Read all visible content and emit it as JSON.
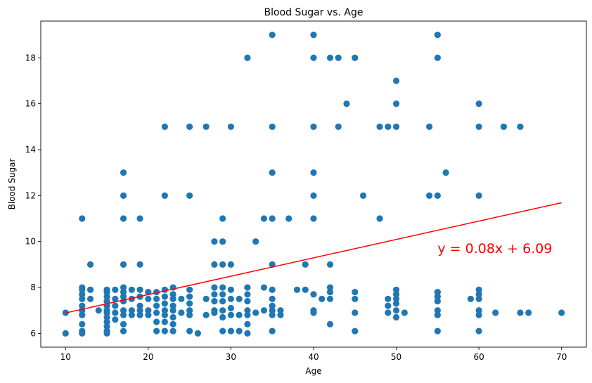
{
  "chart_data": {
    "type": "scatter",
    "title": "Blood Sugar vs. Age",
    "xlabel": "Age",
    "ylabel": "Blood Sugar",
    "xlim": [
      7,
      73
    ],
    "ylim": [
      5.4,
      19.6
    ],
    "xticks": [
      10,
      20,
      30,
      40,
      50,
      60,
      70
    ],
    "yticks": [
      6,
      8,
      10,
      12,
      14,
      16,
      18
    ],
    "grid": false,
    "point_color": "#1f77b4",
    "line_color": "#ff0000",
    "regression": {
      "slope": 0.08,
      "intercept": 6.09,
      "x_range": [
        10,
        70
      ],
      "label": "y = 0.08x + 6.09",
      "label_at": [
        55,
        9.5
      ]
    },
    "points": [
      [
        10,
        6.9
      ],
      [
        10,
        6.0
      ],
      [
        12,
        11
      ],
      [
        12,
        8.0
      ],
      [
        12,
        7.9
      ],
      [
        12,
        7.7
      ],
      [
        12,
        7.5
      ],
      [
        12,
        7.2
      ],
      [
        12,
        7.0
      ],
      [
        12,
        6.8
      ],
      [
        12,
        6.4
      ],
      [
        12,
        6.1
      ],
      [
        12,
        6.0
      ],
      [
        13,
        9
      ],
      [
        13,
        7.9
      ],
      [
        13,
        7.5
      ],
      [
        14,
        7.0
      ],
      [
        15,
        7.9
      ],
      [
        15,
        7.8
      ],
      [
        15,
        7.6
      ],
      [
        15,
        7.4
      ],
      [
        15,
        7.2
      ],
      [
        15,
        7.0
      ],
      [
        15,
        6.9
      ],
      [
        15,
        6.7
      ],
      [
        15,
        6.5
      ],
      [
        15,
        6.3
      ],
      [
        15,
        6.1
      ],
      [
        15,
        6.0
      ],
      [
        16,
        7.9
      ],
      [
        16,
        7.5
      ],
      [
        16,
        7.2
      ],
      [
        16,
        6.9
      ],
      [
        16,
        6.6
      ],
      [
        17,
        13
      ],
      [
        17,
        12
      ],
      [
        17,
        11
      ],
      [
        17,
        9
      ],
      [
        17,
        8.0
      ],
      [
        17,
        7.8
      ],
      [
        17,
        7.6
      ],
      [
        17,
        7.4
      ],
      [
        17,
        7.0
      ],
      [
        17,
        6.8
      ],
      [
        17,
        6.4
      ],
      [
        17,
        6.1
      ],
      [
        18,
        7.9
      ],
      [
        18,
        7.5
      ],
      [
        18,
        7.0
      ],
      [
        18,
        6.8
      ],
      [
        19,
        11
      ],
      [
        19,
        9
      ],
      [
        19,
        7.9
      ],
      [
        19,
        7.6
      ],
      [
        19,
        7.2
      ],
      [
        19,
        7.0
      ],
      [
        19,
        6.8
      ],
      [
        20,
        7.8
      ],
      [
        20,
        7.5
      ],
      [
        20,
        7.0
      ],
      [
        20,
        6.8
      ],
      [
        21,
        7.8
      ],
      [
        21,
        7.5
      ],
      [
        21,
        7.2
      ],
      [
        21,
        6.9
      ],
      [
        21,
        6.5
      ],
      [
        21,
        6.1
      ],
      [
        22,
        15
      ],
      [
        22,
        12
      ],
      [
        22,
        7.9
      ],
      [
        22,
        7.6
      ],
      [
        22,
        7.3
      ],
      [
        22,
        7.0
      ],
      [
        22,
        6.8
      ],
      [
        22,
        6.5
      ],
      [
        22,
        6.1
      ],
      [
        23,
        8.0
      ],
      [
        23,
        7.7
      ],
      [
        23,
        7.5
      ],
      [
        23,
        7.2
      ],
      [
        23,
        7.0
      ],
      [
        23,
        6.7
      ],
      [
        23,
        6.4
      ],
      [
        23,
        6.1
      ],
      [
        24,
        7.5
      ],
      [
        24,
        6.9
      ],
      [
        25,
        15
      ],
      [
        25,
        12
      ],
      [
        25,
        7.9
      ],
      [
        25,
        7.6
      ],
      [
        25,
        7.3
      ],
      [
        25,
        7.0
      ],
      [
        25,
        6.8
      ],
      [
        25,
        6.1
      ],
      [
        26,
        6.0
      ],
      [
        27,
        15
      ],
      [
        27,
        7.5
      ],
      [
        27,
        6.8
      ],
      [
        28,
        10
      ],
      [
        28,
        9
      ],
      [
        28,
        8.0
      ],
      [
        28,
        7.7
      ],
      [
        28,
        7.4
      ],
      [
        28,
        7.0
      ],
      [
        28,
        6.9
      ],
      [
        29,
        11
      ],
      [
        29,
        10
      ],
      [
        29,
        9
      ],
      [
        29,
        8.0
      ],
      [
        29,
        7.7
      ],
      [
        29,
        7.4
      ],
      [
        29,
        7.0
      ],
      [
        29,
        6.7
      ],
      [
        29,
        6.1
      ],
      [
        30,
        15
      ],
      [
        30,
        9
      ],
      [
        30,
        7.9
      ],
      [
        30,
        7.5
      ],
      [
        30,
        7.1
      ],
      [
        30,
        6.8
      ],
      [
        30,
        6.1
      ],
      [
        31,
        7.5
      ],
      [
        31,
        6.8
      ],
      [
        31,
        6.1
      ],
      [
        32,
        18
      ],
      [
        32,
        8.0
      ],
      [
        32,
        7.7
      ],
      [
        32,
        7.4
      ],
      [
        32,
        7.0
      ],
      [
        32,
        6.8
      ],
      [
        32,
        6.4
      ],
      [
        32,
        6.0
      ],
      [
        33,
        10
      ],
      [
        33,
        6.9
      ],
      [
        34,
        11
      ],
      [
        34,
        8.0
      ],
      [
        34,
        7.0
      ],
      [
        35,
        19
      ],
      [
        35,
        15
      ],
      [
        35,
        13
      ],
      [
        35,
        11
      ],
      [
        35,
        9
      ],
      [
        35,
        7.9
      ],
      [
        35,
        7.5
      ],
      [
        35,
        7.2
      ],
      [
        35,
        7.0
      ],
      [
        35,
        6.8
      ],
      [
        35,
        6.1
      ],
      [
        36,
        7.0
      ],
      [
        36,
        6.8
      ],
      [
        37,
        11
      ],
      [
        38,
        7.9
      ],
      [
        39,
        9
      ],
      [
        39,
        7.9
      ],
      [
        40,
        19
      ],
      [
        40,
        18
      ],
      [
        40,
        15
      ],
      [
        40,
        13
      ],
      [
        40,
        12
      ],
      [
        40,
        11
      ],
      [
        40,
        7.7
      ],
      [
        40,
        7.0
      ],
      [
        40,
        6.9
      ],
      [
        41,
        7.5
      ],
      [
        42,
        18
      ],
      [
        42,
        9
      ],
      [
        42,
        8.0
      ],
      [
        42,
        7.8
      ],
      [
        42,
        7.5
      ],
      [
        42,
        6.4
      ],
      [
        43,
        18
      ],
      [
        43,
        15
      ],
      [
        44,
        16
      ],
      [
        45,
        18
      ],
      [
        45,
        7.8
      ],
      [
        45,
        7.5
      ],
      [
        45,
        6.9
      ],
      [
        45,
        6.1
      ],
      [
        46,
        12
      ],
      [
        48,
        15
      ],
      [
        48,
        11
      ],
      [
        49,
        15
      ],
      [
        49,
        7.5
      ],
      [
        49,
        7.2
      ],
      [
        49,
        6.9
      ],
      [
        50,
        17
      ],
      [
        50,
        16
      ],
      [
        50,
        15
      ],
      [
        50,
        7.9
      ],
      [
        50,
        7.7
      ],
      [
        50,
        7.5
      ],
      [
        50,
        7.3
      ],
      [
        50,
        7.0
      ],
      [
        50,
        6.7
      ],
      [
        51,
        6.9
      ],
      [
        54,
        15
      ],
      [
        54,
        12
      ],
      [
        55,
        19
      ],
      [
        55,
        18
      ],
      [
        55,
        12
      ],
      [
        55,
        7.8
      ],
      [
        55,
        7.6
      ],
      [
        55,
        7.4
      ],
      [
        55,
        7.0
      ],
      [
        55,
        6.8
      ],
      [
        55,
        6.1
      ],
      [
        56,
        13
      ],
      [
        59,
        7.5
      ],
      [
        60,
        16
      ],
      [
        60,
        15
      ],
      [
        60,
        12
      ],
      [
        60,
        7.9
      ],
      [
        60,
        7.7
      ],
      [
        60,
        7.5
      ],
      [
        60,
        7.0
      ],
      [
        60,
        6.8
      ],
      [
        60,
        6.1
      ],
      [
        62,
        6.9
      ],
      [
        63,
        15
      ],
      [
        65,
        15
      ],
      [
        65,
        6.9
      ],
      [
        66,
        6.9
      ],
      [
        70,
        6.9
      ]
    ]
  }
}
